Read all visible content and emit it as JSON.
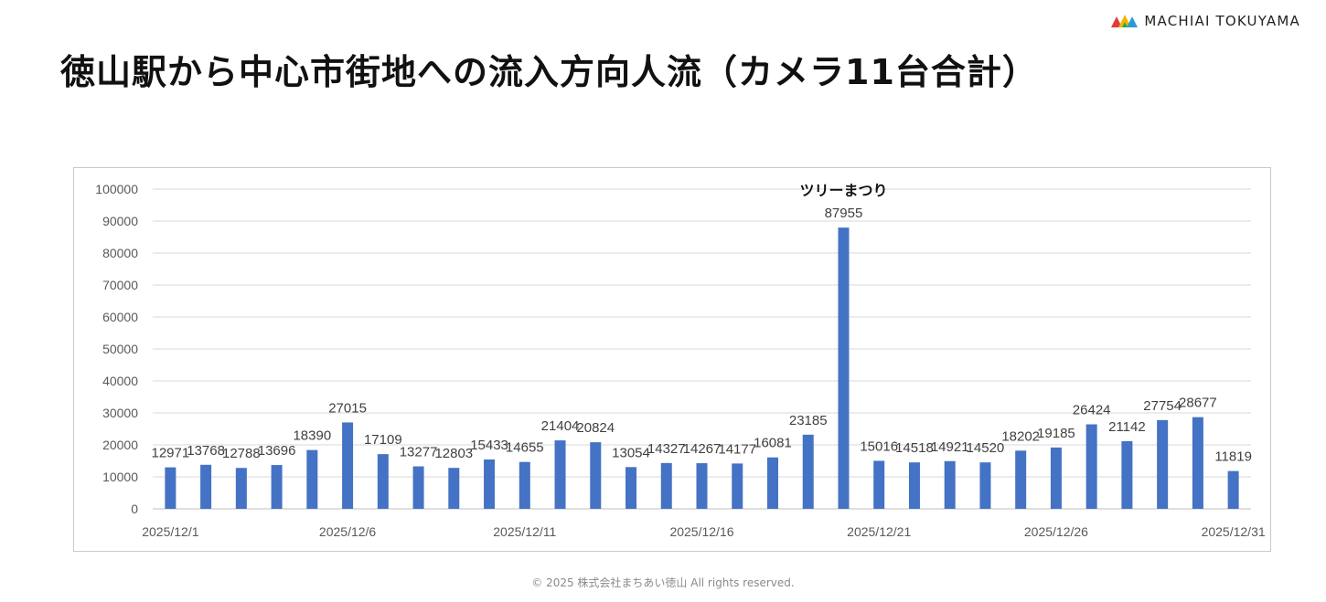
{
  "header": {
    "logo_text": "MACHIAI TOKUYAMA",
    "title": "徳山駅から中心市街地への流入方向人流（カメラ11台合計）"
  },
  "footer": {
    "copyright": "© 2025 株式会社まちあい徳山  All rights reserved."
  },
  "colors": {
    "bar": "#4472C4",
    "grid": "#d9d9d9",
    "axis_text": "#595959"
  },
  "chart_data": {
    "type": "bar",
    "categories": [
      "2025/12/1",
      "2025/12/2",
      "2025/12/3",
      "2025/12/4",
      "2025/12/5",
      "2025/12/6",
      "2025/12/7",
      "2025/12/8",
      "2025/12/9",
      "2025/12/10",
      "2025/12/11",
      "2025/12/12",
      "2025/12/13",
      "2025/12/14",
      "2025/12/15",
      "2025/12/16",
      "2025/12/17",
      "2025/12/18",
      "2025/12/19",
      "2025/12/20",
      "2025/12/21",
      "2025/12/22",
      "2025/12/23",
      "2025/12/24",
      "2025/12/25",
      "2025/12/26",
      "2025/12/27",
      "2025/12/28",
      "2025/12/29",
      "2025/12/30",
      "2025/12/31"
    ],
    "visible_x_labels": [
      "2025/12/1",
      "2025/12/6",
      "2025/12/11",
      "2025/12/16",
      "2025/12/21",
      "2025/12/26",
      "2025/12/31"
    ],
    "values": [
      12971,
      13768,
      12788,
      13696,
      18390,
      27015,
      17109,
      13277,
      12803,
      15433,
      14655,
      21404,
      20824,
      13054,
      14327,
      14267,
      14177,
      16081,
      23185,
      87955,
      15016,
      14518,
      14921,
      14520,
      18202,
      19185,
      26424,
      21142,
      27754,
      28677,
      11819
    ],
    "ylim": [
      0,
      100000
    ],
    "yticks": [
      0,
      10000,
      20000,
      30000,
      40000,
      50000,
      60000,
      70000,
      80000,
      90000,
      100000
    ],
    "grid": true,
    "annotations": [
      {
        "category": "2025/12/20",
        "text": "ツリーまつり"
      }
    ]
  }
}
